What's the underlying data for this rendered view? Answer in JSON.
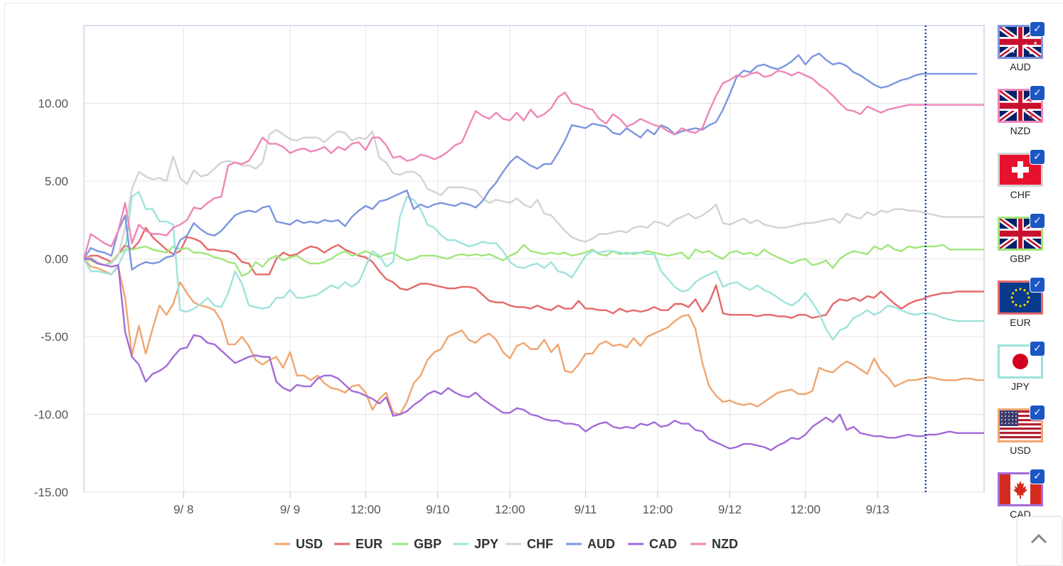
{
  "chart_data": {
    "type": "line",
    "title": "",
    "xlabel": "",
    "ylabel": "",
    "ylim": [
      -15,
      15
    ],
    "yticks": [
      "10.00",
      "5.00",
      "0.00",
      "-5.00",
      "-10.00",
      "-15.00"
    ],
    "ytick_values": [
      10,
      5,
      0,
      -5,
      -10,
      -15
    ],
    "xlim": [
      0,
      131
    ],
    "xticks": [
      "9/ 8",
      "9/ 9",
      "12:00",
      "9/10",
      "12:00",
      "9/11",
      "12:00",
      "9/12",
      "12:00",
      "9/13"
    ],
    "xtick_values": [
      14.5,
      30,
      41,
      51.5,
      62,
      73,
      83.5,
      94,
      105,
      115.5
    ],
    "grid": true,
    "legend_position": "bottom",
    "current_marker_x": 122.5,
    "series": [
      {
        "name": "USD",
        "color": "#f0a56f",
        "values": [
          0,
          -0.5,
          -0.6,
          -0.8,
          -1.0,
          -0.5,
          -2.5,
          -6.2,
          -4.3,
          -6.1,
          -4.5,
          -3.0,
          -3.6,
          -2.9,
          -1.5,
          -2.2,
          -2.8,
          -3.0,
          -3.1,
          -3.3,
          -4.0,
          -5.5,
          -5.5,
          -5.0,
          -5.6,
          -6.5,
          -6.8,
          -6.5,
          -6.3,
          -7.0,
          -6.0,
          -7.5,
          -7.5,
          -7.8,
          -7.5,
          -8.0,
          -8.3,
          -8.4,
          -8.6,
          -8.2,
          -8.1,
          -8.6,
          -9.7,
          -9.0,
          -8.6,
          -9.9,
          -10.0,
          -9.2,
          -8.0,
          -7.5,
          -6.5,
          -6.0,
          -5.8,
          -5.0,
          -4.8,
          -4.6,
          -5.2,
          -5.4,
          -5.0,
          -4.8,
          -5.2,
          -6.0,
          -6.4,
          -5.6,
          -5.4,
          -5.8,
          -5.8,
          -5.2,
          -6.0,
          -5.5,
          -7.2,
          -7.3,
          -6.8,
          -6.1,
          -6.1,
          -5.5,
          -5.3,
          -5.6,
          -5.5,
          -5.7,
          -5.1,
          -5.6,
          -5.0,
          -4.8,
          -4.6,
          -4.4,
          -4.0,
          -3.7,
          -3.6,
          -4.5,
          -6.7,
          -8.2,
          -8.8,
          -9.2,
          -9.1,
          -9.3,
          -9.4,
          -9.3,
          -9.5,
          -9.2,
          -8.9,
          -8.6,
          -8.5,
          -8.4,
          -8.7,
          -8.7,
          -8.5,
          -7.0,
          -7.2,
          -7.3,
          -6.9,
          -6.6,
          -6.8,
          -7.1,
          -7.4,
          -6.4,
          -7.2,
          -7.6,
          -8.2,
          -8.0,
          -7.8,
          -7.8,
          -7.7,
          -7.6,
          -7.7,
          -7.8,
          -7.8,
          -7.8,
          -7.7,
          -7.7,
          -7.8,
          -7.8
        ]
      },
      {
        "name": "EUR",
        "color": "#e5686a",
        "values": [
          0,
          0.2,
          0.2,
          0.0,
          -0.2,
          0.3,
          0.9,
          0.6,
          1.1,
          2.0,
          1.4,
          1.0,
          0.6,
          0.3,
          0.5,
          1.4,
          1.3,
          1.1,
          0.6,
          0.6,
          0.5,
          0.5,
          0.3,
          -0.2,
          -0.3,
          -1.0,
          -1.0,
          -1.0,
          0.0,
          0.4,
          0.2,
          0.3,
          0.6,
          0.8,
          0.7,
          0.4,
          0.7,
          0.9,
          0.6,
          0.4,
          0.2,
          0.1,
          -0.2,
          -0.8,
          -1.3,
          -1.5,
          -1.9,
          -2.0,
          -1.8,
          -1.6,
          -1.6,
          -1.7,
          -1.8,
          -1.9,
          -1.9,
          -1.8,
          -1.8,
          -1.9,
          -2.3,
          -2.7,
          -2.8,
          -2.8,
          -3.0,
          -3.1,
          -3.1,
          -3.2,
          -3.0,
          -3.2,
          -3.3,
          -3.0,
          -3.2,
          -3.2,
          -2.7,
          -3.2,
          -3.2,
          -3.3,
          -3.3,
          -3.5,
          -3.2,
          -3.4,
          -3.3,
          -3.4,
          -3.3,
          -3.1,
          -3.3,
          -3.3,
          -2.9,
          -2.9,
          -3.1,
          -2.6,
          -3.4,
          -2.8,
          -1.7,
          -3.5,
          -3.6,
          -3.6,
          -3.6,
          -3.6,
          -3.7,
          -3.6,
          -3.6,
          -3.7,
          -3.7,
          -3.8,
          -3.6,
          -3.6,
          -3.8,
          -3.7,
          -3.6,
          -2.9,
          -2.6,
          -2.7,
          -2.5,
          -2.7,
          -2.4,
          -2.5,
          -2.1,
          -2.5,
          -2.9,
          -3.2,
          -2.9,
          -2.7,
          -2.6,
          -2.4,
          -2.3,
          -2.2,
          -2.2,
          -2.1,
          -2.1,
          -2.1,
          -2.1,
          -2.1
        ]
      },
      {
        "name": "GBP",
        "color": "#a0e67a",
        "values": [
          0,
          -0.1,
          -0.3,
          -0.4,
          -0.2,
          0.3,
          0.6,
          0.6,
          0.7,
          0.8,
          0.6,
          0.5,
          0.4,
          0.8,
          0.6,
          0.7,
          0.4,
          0.4,
          0.3,
          0.1,
          0.0,
          -0.2,
          -0.3,
          -1.1,
          -0.9,
          -0.2,
          -0.5,
          0.0,
          0.2,
          -0.1,
          0.1,
          0.2,
          -0.1,
          -0.3,
          -0.3,
          -0.2,
          0.0,
          0.3,
          0.5,
          0.2,
          0.3,
          0.5,
          0.3,
          0.1,
          0.3,
          0.4,
          0.1,
          -0.1,
          0.0,
          0.2,
          0.2,
          0.2,
          0.1,
          0.0,
          0.2,
          0.3,
          0.2,
          0.3,
          0.2,
          0.3,
          0.1,
          -0.1,
          0.2,
          0.4,
          0.9,
          0.5,
          0.4,
          0.3,
          0.4,
          0.3,
          0.4,
          0.2,
          0.3,
          0.4,
          0.6,
          0.3,
          0.2,
          0.5,
          0.3,
          0.4,
          0.3,
          0.4,
          0.5,
          0.4,
          0.3,
          0.2,
          0.3,
          0.4,
          0.0,
          0.6,
          0.4,
          0.5,
          0.2,
          0.0,
          0.4,
          0.5,
          0.3,
          0.4,
          0.2,
          0.6,
          0.3,
          0.1,
          -0.1,
          -0.3,
          -0.1,
          0.0,
          -0.4,
          -0.3,
          -0.1,
          -0.6,
          0.0,
          0.3,
          0.5,
          0.4,
          0.3,
          0.8,
          0.6,
          0.9,
          0.6,
          0.5,
          0.8,
          0.7,
          0.8,
          0.8,
          0.8,
          0.9,
          0.6,
          0.6,
          0.6,
          0.6,
          0.6,
          0.6
        ]
      },
      {
        "name": "JPY",
        "color": "#9ee3dc",
        "values": [
          0,
          -0.8,
          -0.8,
          -0.9,
          -1.0,
          -0.4,
          0.5,
          4.0,
          4.3,
          3.2,
          3.2,
          2.4,
          2.4,
          2.2,
          -3.3,
          -3.4,
          -3.2,
          -2.9,
          -2.5,
          -3.0,
          -3.1,
          -2.2,
          -0.8,
          -1.6,
          -3.0,
          -3.1,
          -3.2,
          -3.1,
          -2.5,
          -2.5,
          -2.0,
          -2.5,
          -2.5,
          -2.4,
          -2.3,
          -2.0,
          -1.7,
          -1.9,
          -1.5,
          -1.8,
          -1.5,
          -0.5,
          0.5,
          0.2,
          -0.5,
          -0.2,
          2.7,
          4.0,
          3.8,
          3.2,
          2.2,
          2.0,
          1.5,
          1.2,
          1.2,
          1.0,
          0.8,
          0.9,
          1.1,
          1.0,
          1.0,
          0.5,
          -0.2,
          -0.5,
          -0.6,
          -0.4,
          -0.3,
          -0.6,
          -0.2,
          -0.8,
          -0.9,
          -1.2,
          -0.5,
          0.2,
          0.5,
          0.4,
          0.5,
          0.5,
          0.4,
          0.3,
          0.4,
          0.4,
          0.3,
          0.3,
          -0.8,
          -1.3,
          -1.8,
          -2.1,
          -2.0,
          -1.5,
          -1.2,
          -1.0,
          -0.8,
          -1.8,
          -1.6,
          -1.5,
          -1.8,
          -2.0,
          -1.7,
          -2.0,
          -2.2,
          -2.5,
          -2.8,
          -3.0,
          -2.7,
          -2.2,
          -2.8,
          -3.5,
          -4.5,
          -5.2,
          -4.6,
          -4.4,
          -3.8,
          -3.6,
          -3.3,
          -3.6,
          -3.4,
          -3.0,
          -3.1,
          -3.3,
          -3.5,
          -3.6,
          -3.5,
          -3.5,
          -3.6,
          -3.8,
          -3.9,
          -4.0,
          -4.0,
          -4.0,
          -4.0,
          -4.0
        ]
      },
      {
        "name": "CHF",
        "color": "#d3d3d3",
        "values": [
          0,
          0.1,
          -0.2,
          -0.4,
          -0.3,
          0.2,
          2.0,
          4.5,
          5.6,
          5.3,
          5.1,
          5.2,
          5.0,
          6.6,
          5.2,
          4.8,
          5.7,
          5.3,
          5.4,
          5.8,
          6.2,
          6.3,
          6.2,
          6.0,
          6.0,
          5.8,
          6.2,
          8.0,
          8.3,
          8.0,
          7.7,
          7.6,
          7.8,
          7.8,
          7.8,
          7.5,
          7.9,
          8.2,
          8.1,
          7.6,
          7.8,
          7.7,
          8.2,
          6.5,
          6.2,
          5.5,
          5.4,
          5.6,
          5.6,
          5.3,
          4.5,
          4.3,
          4.1,
          4.6,
          4.6,
          4.6,
          4.5,
          4.4,
          3.9,
          3.6,
          3.8,
          3.7,
          3.6,
          3.9,
          3.5,
          3.3,
          3.8,
          2.9,
          2.8,
          2.3,
          1.8,
          1.4,
          1.2,
          1.1,
          1.3,
          1.6,
          1.6,
          1.7,
          1.8,
          1.7,
          2.0,
          2.1,
          2.0,
          2.4,
          2.3,
          2.1,
          2.5,
          2.7,
          2.9,
          2.6,
          2.8,
          3.1,
          3.5,
          2.3,
          2.2,
          2.4,
          2.6,
          2.3,
          2.5,
          2.2,
          2.1,
          2.0,
          2.0,
          2.1,
          2.2,
          2.3,
          2.3,
          2.4,
          2.5,
          2.6,
          2.3,
          2.9,
          2.7,
          2.6,
          3.0,
          2.8,
          3.1,
          3.0,
          3.2,
          3.2,
          3.1,
          3.1,
          3.0,
          2.9,
          2.8,
          2.7,
          2.7,
          2.7,
          2.7,
          2.7,
          2.7,
          2.7
        ]
      },
      {
        "name": "AUD",
        "color": "#7b96df",
        "values": [
          0,
          0.7,
          0.5,
          0.4,
          0.2,
          1.8,
          2.8,
          -0.7,
          -0.4,
          -0.2,
          -0.3,
          -0.2,
          0.1,
          0.2,
          1.2,
          1.5,
          2.3,
          1.9,
          1.6,
          1.5,
          1.8,
          2.3,
          2.8,
          3.0,
          3.1,
          3.0,
          3.3,
          3.4,
          2.4,
          2.3,
          2.2,
          2.5,
          2.3,
          2.4,
          2.3,
          2.5,
          2.4,
          2.5,
          2.1,
          2.7,
          3.1,
          3.4,
          3.2,
          3.7,
          3.8,
          4.0,
          4.2,
          4.4,
          3.2,
          3.5,
          3.3,
          3.5,
          3.6,
          3.5,
          3.4,
          3.6,
          3.5,
          3.3,
          3.7,
          4.4,
          4.9,
          5.6,
          6.2,
          6.6,
          6.3,
          6.0,
          5.8,
          6.1,
          6.1,
          6.8,
          7.6,
          8.6,
          8.5,
          8.4,
          8.7,
          8.6,
          8.5,
          8.1,
          8.0,
          8.4,
          8.1,
          7.8,
          8.3,
          8.0,
          8.6,
          8.4,
          8.0,
          8.2,
          8.3,
          8.4,
          8.3,
          8.6,
          8.8,
          9.6,
          10.6,
          11.7,
          12.1,
          12.0,
          12.4,
          12.5,
          12.3,
          12.2,
          12.4,
          12.7,
          13.1,
          12.5,
          13.0,
          13.2,
          12.8,
          12.5,
          12.6,
          12.4,
          12.0,
          11.8,
          11.5,
          11.2,
          11.0,
          11.1,
          11.3,
          11.5,
          11.6,
          11.8,
          11.9,
          11.9,
          11.9,
          11.9,
          11.9,
          11.9,
          11.9,
          11.9,
          11.9
        ]
      },
      {
        "name": "CAD",
        "color": "#a26bd8",
        "values": [
          0,
          0.0,
          -0.3,
          -0.4,
          -0.5,
          -0.4,
          -4.7,
          -6.3,
          -6.8,
          -7.9,
          -7.4,
          -7.2,
          -6.9,
          -6.3,
          -5.8,
          -5.7,
          -4.9,
          -5.0,
          -5.4,
          -5.5,
          -5.9,
          -6.3,
          -6.7,
          -6.5,
          -6.3,
          -6.2,
          -6.3,
          -6.3,
          -7.9,
          -8.3,
          -8.5,
          -8.1,
          -8.2,
          -8.2,
          -7.7,
          -7.5,
          -7.5,
          -7.7,
          -8.1,
          -8.5,
          -8.6,
          -8.8,
          -9.0,
          -9.3,
          -8.9,
          -10.1,
          -10.0,
          -9.8,
          -9.4,
          -9.1,
          -8.7,
          -8.5,
          -8.7,
          -8.3,
          -8.6,
          -8.8,
          -8.9,
          -8.6,
          -9.0,
          -9.3,
          -9.6,
          -9.9,
          -9.9,
          -9.6,
          -9.7,
          -10.0,
          -10.1,
          -10.3,
          -10.4,
          -10.4,
          -10.6,
          -10.6,
          -10.7,
          -11.1,
          -10.8,
          -10.6,
          -10.5,
          -10.8,
          -10.9,
          -10.8,
          -10.9,
          -10.6,
          -10.7,
          -10.5,
          -10.8,
          -10.7,
          -10.4,
          -10.6,
          -10.6,
          -11.0,
          -11.1,
          -11.6,
          -11.8,
          -12.0,
          -12.2,
          -12.1,
          -11.9,
          -11.9,
          -12.0,
          -12.1,
          -12.3,
          -12.0,
          -11.8,
          -11.5,
          -11.6,
          -11.3,
          -10.8,
          -10.5,
          -10.2,
          -10.5,
          -10.0,
          -11.0,
          -10.8,
          -11.2,
          -11.3,
          -11.4,
          -11.4,
          -11.5,
          -11.5,
          -11.4,
          -11.3,
          -11.4,
          -11.4,
          -11.3,
          -11.3,
          -11.2,
          -11.1,
          -11.2,
          -11.2,
          -11.2,
          -11.2,
          -11.2
        ]
      },
      {
        "name": "NZD",
        "color": "#ef86b7",
        "values": [
          0,
          1.6,
          1.3,
          1.0,
          0.8,
          1.8,
          3.6,
          1.0,
          2.2,
          1.8,
          1.6,
          1.6,
          1.5,
          2.0,
          2.2,
          2.5,
          3.3,
          3.2,
          3.6,
          3.9,
          4.0,
          6.0,
          6.2,
          6.1,
          6.3,
          7.0,
          7.8,
          7.4,
          7.4,
          7.2,
          6.8,
          7.0,
          7.1,
          6.9,
          7.0,
          7.2,
          6.8,
          7.2,
          7.0,
          7.4,
          7.5,
          7.0,
          7.8,
          7.8,
          7.3,
          6.5,
          6.6,
          6.3,
          6.4,
          6.7,
          6.6,
          6.4,
          6.6,
          6.9,
          7.3,
          7.5,
          8.5,
          9.5,
          9.2,
          9.0,
          9.4,
          9.0,
          8.9,
          9.4,
          8.9,
          9.6,
          9.1,
          9.3,
          9.7,
          10.4,
          10.7,
          10.0,
          9.9,
          9.7,
          9.6,
          9.0,
          8.7,
          9.3,
          9.0,
          8.5,
          8.7,
          9.0,
          8.8,
          8.6,
          8.5,
          8.2,
          8.0,
          8.4,
          8.2,
          8.1,
          8.4,
          9.5,
          10.5,
          11.3,
          11.5,
          11.8,
          11.7,
          11.9,
          12.0,
          11.7,
          11.8,
          12.1,
          12.0,
          11.8,
          12.0,
          11.8,
          11.6,
          11.2,
          10.9,
          10.5,
          10.0,
          9.6,
          9.5,
          9.3,
          9.8,
          9.6,
          9.4,
          9.6,
          9.7,
          9.8,
          9.9,
          9.9,
          9.9,
          9.9,
          9.9,
          9.9,
          9.9,
          9.9,
          9.9,
          9.9,
          9.9,
          9.9
        ]
      }
    ]
  },
  "currency_buttons": [
    {
      "code": "AUD",
      "flag": "australia-flag-icon",
      "border": "#7b96df",
      "checked": true
    },
    {
      "code": "NZD",
      "flag": "new-zealand-flag-icon",
      "border": "#ef86b7",
      "checked": true
    },
    {
      "code": "CHF",
      "flag": "switzerland-flag-icon",
      "border": "#d3d3d3",
      "checked": true
    },
    {
      "code": "GBP",
      "flag": "uk-flag-icon",
      "border": "#a0e67a",
      "checked": true
    },
    {
      "code": "EUR",
      "flag": "eu-flag-icon",
      "border": "#e5686a",
      "checked": true
    },
    {
      "code": "JPY",
      "flag": "japan-flag-icon",
      "border": "#9ee3dc",
      "checked": true
    },
    {
      "code": "USD",
      "flag": "usa-flag-icon",
      "border": "#f0a56f",
      "checked": true
    },
    {
      "code": "CAD",
      "flag": "canada-flag-icon",
      "border": "#a26bd8",
      "checked": true
    }
  ],
  "check_glyph": "✓",
  "scroll_top_icon": "chevron-up-icon"
}
